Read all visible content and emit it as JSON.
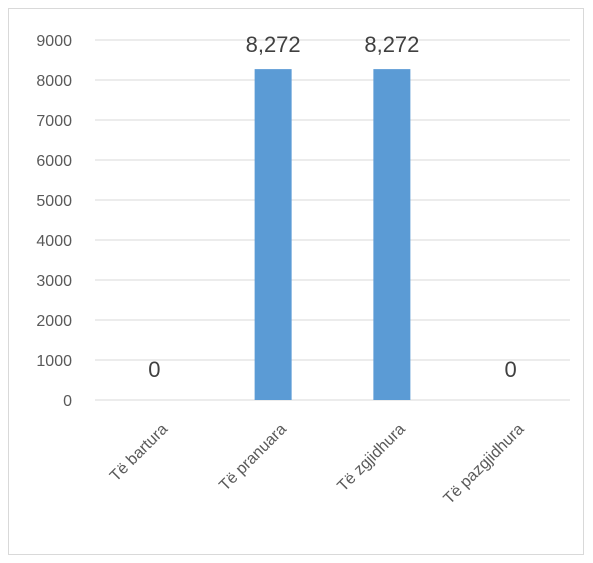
{
  "chart_data": {
    "type": "bar",
    "categories": [
      "Të bartura",
      "Të pranuara",
      "Të zgjidhura",
      "Të pazgjidhura"
    ],
    "values": [
      0,
      8272,
      8272,
      0
    ],
    "data_labels": [
      "0",
      "8,272",
      "8,272",
      "0"
    ],
    "title": "",
    "xlabel": "",
    "ylabel": "",
    "ylim": [
      0,
      9000
    ],
    "yticks": [
      "0",
      "1000",
      "2000",
      "3000",
      "4000",
      "5000",
      "6000",
      "7000",
      "8000",
      "9000"
    ],
    "grid": true,
    "legend": "none",
    "bar_color": "#5b9bd5",
    "grid_color": "#d9d9d9",
    "label_color": "#595959"
  }
}
